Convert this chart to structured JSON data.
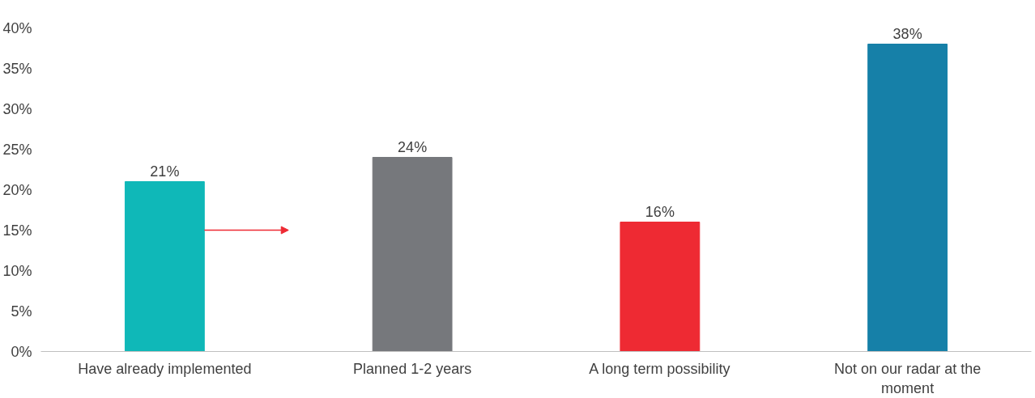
{
  "chart_data": {
    "type": "bar",
    "categories": [
      "Have already implemented",
      "Planned 1-2 years",
      "A long term possibility",
      "Not on our radar at the moment"
    ],
    "values": [
      21,
      24,
      16,
      38
    ],
    "colors": [
      "#0fb8b8",
      "#76787c",
      "#ee2a33",
      "#1680a8"
    ],
    "value_labels": [
      "21%",
      "24%",
      "16%",
      "38%"
    ],
    "ylim": [
      0,
      40
    ],
    "yticks": [
      {
        "value": 0,
        "label": "0%"
      },
      {
        "value": 5,
        "label": "5%"
      },
      {
        "value": 10,
        "label": "10%"
      },
      {
        "value": 15,
        "label": "15%"
      },
      {
        "value": 20,
        "label": "20%"
      },
      {
        "value": 25,
        "label": "25%"
      },
      {
        "value": 30,
        "label": "30%"
      },
      {
        "value": 35,
        "label": "35%"
      },
      {
        "value": 40,
        "label": "40%"
      }
    ],
    "grid": false
  }
}
